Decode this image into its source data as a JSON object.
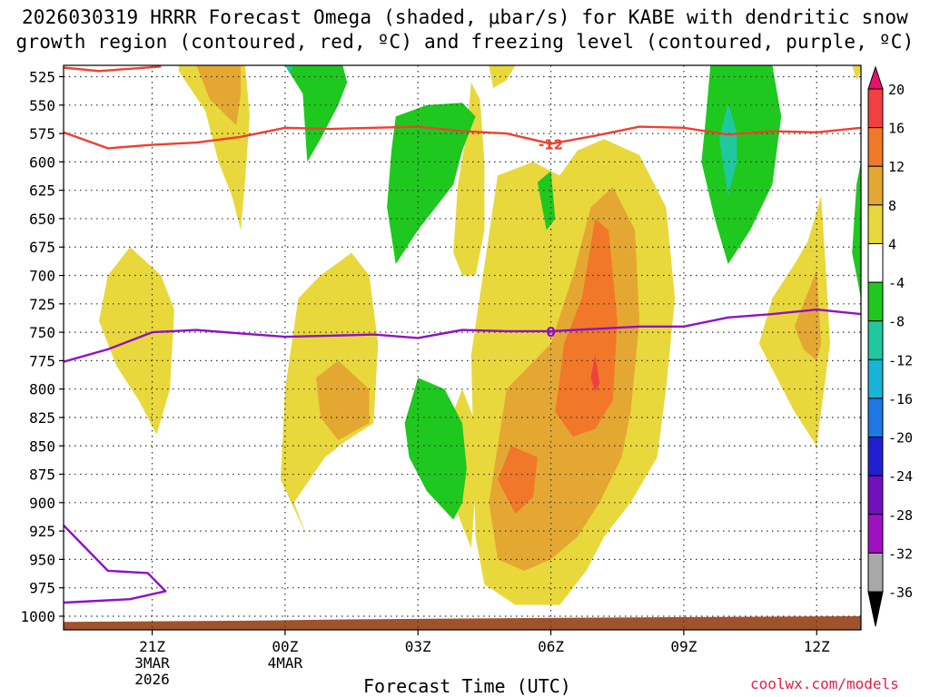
{
  "chart_data": {
    "type": "heatmap",
    "title_line1": "2026030319 HRRR Forecast Omega (shaded, μbar/s) for KABE with dendritic snow",
    "title_line2": "growth region (contoured, red, ºC) and freezing level (contoured, purple, ºC)",
    "xlabel": "Forecast Time (UTC)",
    "credit": "coolwx.com/models",
    "x_ticks": [
      {
        "hour": 21,
        "label": "21Z",
        "sub1": "3MAR",
        "sub2": "2026"
      },
      {
        "hour": 24,
        "label": "00Z",
        "sub1": "4MAR",
        "sub2": ""
      },
      {
        "hour": 27,
        "label": "03Z",
        "sub1": "",
        "sub2": ""
      },
      {
        "hour": 30,
        "label": "06Z",
        "sub1": "",
        "sub2": ""
      },
      {
        "hour": 33,
        "label": "09Z",
        "sub1": "",
        "sub2": ""
      },
      {
        "hour": 36,
        "label": "12Z",
        "sub1": "",
        "sub2": ""
      }
    ],
    "x_range_hours": [
      19.0,
      37.0
    ],
    "y_ticks": [
      "525",
      "550",
      "575",
      "600",
      "625",
      "650",
      "675",
      "700",
      "725",
      "750",
      "775",
      "800",
      "825",
      "850",
      "875",
      "900",
      "925",
      "950",
      "975",
      "1000"
    ],
    "y_range_mb": [
      515,
      1012
    ],
    "colorbar": {
      "labels": [
        "20",
        "16",
        "12",
        "8",
        "4",
        "-4",
        "-8",
        "-12",
        "-16",
        "-20",
        "-24",
        "-28",
        "-32",
        "-36"
      ],
      "colors": [
        "#e8106e",
        "#f04040",
        "#f07828",
        "#e4a832",
        "#e8d83c",
        "#ffffff",
        "#1ec81e",
        "#20c8a0",
        "#18b4d8",
        "#1e78e6",
        "#2020d0",
        "#7010c0",
        "#a010c0",
        "#a8a8a8",
        "#000000"
      ]
    },
    "contours": [
      {
        "name": "dgz-top",
        "value": "-12",
        "color": "#f04030",
        "points": [
          [
            19,
            574
          ],
          [
            20,
            588
          ],
          [
            21,
            585
          ],
          [
            22,
            583
          ],
          [
            23,
            578
          ],
          [
            24,
            570
          ],
          [
            25,
            571
          ],
          [
            26,
            570
          ],
          [
            27,
            569
          ],
          [
            28,
            573
          ],
          [
            29,
            575
          ],
          [
            30,
            584
          ],
          [
            31,
            577
          ],
          [
            32,
            569
          ],
          [
            33,
            570
          ],
          [
            34,
            576
          ],
          [
            35,
            573
          ],
          [
            36,
            574
          ],
          [
            37,
            570
          ]
        ]
      },
      {
        "name": "freezing-level",
        "value": "0",
        "color": "#9010c8",
        "points": [
          [
            19,
            776
          ],
          [
            20,
            765
          ],
          [
            21,
            750
          ],
          [
            22,
            748
          ],
          [
            23,
            751
          ],
          [
            24,
            754
          ],
          [
            25,
            753
          ],
          [
            26,
            752
          ],
          [
            27,
            755
          ],
          [
            28,
            748
          ],
          [
            29,
            749
          ],
          [
            30,
            749
          ],
          [
            31,
            747
          ],
          [
            32,
            745
          ],
          [
            33,
            745
          ],
          [
            34,
            737
          ],
          [
            35,
            734
          ],
          [
            36,
            730
          ],
          [
            37,
            734
          ]
        ]
      },
      {
        "name": "surface-freezing",
        "value": "",
        "color": "#9010c8",
        "points": [
          [
            19,
            920
          ],
          [
            20,
            960
          ],
          [
            20.9,
            962
          ],
          [
            21.3,
            978
          ],
          [
            20.5,
            985
          ],
          [
            19,
            988
          ]
        ]
      },
      {
        "name": "top-edge-contour",
        "value": "",
        "color": "#f04030",
        "points": [
          [
            19,
            517
          ],
          [
            19.8,
            520
          ],
          [
            21.2,
            516
          ]
        ]
      }
    ],
    "shaded_regions": [
      {
        "name": "rising-band-main",
        "value": 4,
        "poly": [
          [
            28.2,
            770
          ],
          [
            28.8,
            612
          ],
          [
            29.6,
            600
          ],
          [
            30.2,
            612
          ],
          [
            30.6,
            590
          ],
          [
            31.2,
            580
          ],
          [
            32.0,
            594
          ],
          [
            32.6,
            640
          ],
          [
            32.8,
            720
          ],
          [
            32.6,
            800
          ],
          [
            32.4,
            860
          ],
          [
            31.8,
            900
          ],
          [
            31.2,
            930
          ],
          [
            30.8,
            960
          ],
          [
            30.2,
            990
          ],
          [
            29.2,
            990
          ],
          [
            28.5,
            972
          ],
          [
            28.3,
            930
          ]
        ]
      },
      {
        "name": "rising-band-lower-left",
        "value": 4,
        "poly": [
          [
            27.7,
            830
          ],
          [
            28.0,
            800
          ],
          [
            28.4,
            840
          ],
          [
            28.2,
            940
          ],
          [
            27.8,
            900
          ]
        ]
      },
      {
        "name": "rising-band-orange",
        "value": 8,
        "poly": [
          [
            28.6,
            900
          ],
          [
            29.0,
            800
          ],
          [
            30.0,
            760
          ],
          [
            30.5,
            700
          ],
          [
            30.9,
            640
          ],
          [
            31.4,
            622
          ],
          [
            31.9,
            660
          ],
          [
            32.0,
            740
          ],
          [
            31.8,
            820
          ],
          [
            31.6,
            860
          ],
          [
            31.1,
            900
          ],
          [
            30.6,
            930
          ],
          [
            30.0,
            950
          ],
          [
            29.4,
            960
          ],
          [
            28.8,
            950
          ]
        ]
      },
      {
        "name": "rising-band-darker",
        "value": 12,
        "poly": [
          [
            28.8,
            880
          ],
          [
            29.1,
            850
          ],
          [
            29.7,
            860
          ],
          [
            29.6,
            895
          ],
          [
            29.2,
            910
          ]
        ]
      },
      {
        "name": "rising-band-core",
        "value": 12,
        "poly": [
          [
            30.1,
            820
          ],
          [
            30.3,
            760
          ],
          [
            30.7,
            720
          ],
          [
            31.0,
            650
          ],
          [
            31.3,
            660
          ],
          [
            31.5,
            740
          ],
          [
            31.4,
            810
          ],
          [
            31.0,
            835
          ],
          [
            30.5,
            842
          ]
        ]
      },
      {
        "name": "rising-band-peak",
        "value": 16,
        "poly": [
          [
            30.9,
            790
          ],
          [
            31.0,
            770
          ],
          [
            31.1,
            795
          ],
          [
            31.0,
            802
          ]
        ]
      },
      {
        "name": "upper-left-yellow",
        "value": 4,
        "poly": [
          [
            21.6,
            520
          ],
          [
            22.2,
            555
          ],
          [
            22.5,
            600
          ],
          [
            22.8,
            630
          ],
          [
            23.0,
            660
          ],
          [
            23.1,
            615
          ],
          [
            23.2,
            560
          ],
          [
            23.1,
            515
          ],
          [
            21.6,
            515
          ]
        ]
      },
      {
        "name": "upper-left-orange",
        "value": 8,
        "poly": [
          [
            22.0,
            515
          ],
          [
            22.3,
            545
          ],
          [
            22.9,
            568
          ],
          [
            23.0,
            540
          ],
          [
            23.0,
            515
          ]
        ]
      },
      {
        "name": "left-mid-yellow",
        "value": 4,
        "poly": [
          [
            19.8,
            740
          ],
          [
            20.0,
            700
          ],
          [
            20.5,
            675
          ],
          [
            21.2,
            700
          ],
          [
            21.5,
            730
          ],
          [
            21.4,
            800
          ],
          [
            21.1,
            840
          ],
          [
            20.7,
            810
          ],
          [
            20.2,
            780
          ]
        ]
      },
      {
        "name": "center-left-yellow",
        "value": 4,
        "poly": [
          [
            23.9,
            880
          ],
          [
            24.0,
            800
          ],
          [
            24.3,
            720
          ],
          [
            24.8,
            700
          ],
          [
            25.5,
            680
          ],
          [
            25.9,
            700
          ],
          [
            26.1,
            760
          ],
          [
            26.0,
            830
          ],
          [
            25.4,
            845
          ],
          [
            24.9,
            860
          ],
          [
            24.2,
            900
          ],
          [
            24.5,
            930
          ]
        ]
      },
      {
        "name": "center-left-orange",
        "value": 8,
        "poly": [
          [
            24.7,
            790
          ],
          [
            25.2,
            775
          ],
          [
            25.9,
            800
          ],
          [
            25.9,
            830
          ],
          [
            25.2,
            845
          ],
          [
            24.8,
            825
          ]
        ]
      },
      {
        "name": "tall-yellow-column",
        "value": 4,
        "poly": [
          [
            27.8,
            680
          ],
          [
            27.9,
            620
          ],
          [
            28.1,
            575
          ],
          [
            28.2,
            530
          ],
          [
            28.4,
            545
          ],
          [
            28.5,
            600
          ],
          [
            28.5,
            660
          ],
          [
            28.3,
            700
          ],
          [
            28.0,
            700
          ]
        ]
      },
      {
        "name": "top-right-yellow-small",
        "value": 4,
        "poly": [
          [
            28.6,
            515
          ],
          [
            28.7,
            535
          ],
          [
            29.0,
            528
          ],
          [
            29.2,
            515
          ]
        ]
      },
      {
        "name": "right-yellow",
        "value": 4,
        "poly": [
          [
            34.7,
            760
          ],
          [
            35.0,
            720
          ],
          [
            35.5,
            690
          ],
          [
            35.8,
            670
          ],
          [
            36.1,
            630
          ],
          [
            36.2,
            690
          ],
          [
            36.3,
            760
          ],
          [
            36.1,
            820
          ],
          [
            36.0,
            850
          ],
          [
            35.5,
            820
          ],
          [
            35.1,
            790
          ]
        ]
      },
      {
        "name": "right-orange",
        "value": 8,
        "poly": [
          [
            35.5,
            745
          ],
          [
            35.8,
            715
          ],
          [
            36.0,
            695
          ],
          [
            36.1,
            760
          ],
          [
            36.0,
            775
          ],
          [
            35.7,
            765
          ]
        ]
      },
      {
        "name": "top-right-edge-yellow",
        "value": 4,
        "poly": [
          [
            36.8,
            515
          ],
          [
            36.9,
            528
          ],
          [
            37.0,
            520
          ],
          [
            37.0,
            515
          ]
        ]
      },
      {
        "name": "green-top-center",
        "value": -4,
        "poly": [
          [
            24.0,
            515
          ],
          [
            24.4,
            540
          ],
          [
            24.5,
            600
          ],
          [
            24.8,
            580
          ],
          [
            25.2,
            550
          ],
          [
            25.4,
            530
          ],
          [
            25.3,
            515
          ]
        ]
      },
      {
        "name": "teal-top-center",
        "value": -8,
        "poly": [
          [
            24.0,
            515
          ],
          [
            24.1,
            522
          ],
          [
            24.2,
            515
          ]
        ]
      },
      {
        "name": "green-mid-center",
        "value": -4,
        "poly": [
          [
            26.5,
            560
          ],
          [
            27.2,
            550
          ],
          [
            28.0,
            548
          ],
          [
            28.3,
            560
          ],
          [
            28.0,
            590
          ],
          [
            27.8,
            620
          ],
          [
            27.0,
            660
          ],
          [
            26.5,
            690
          ],
          [
            26.3,
            640
          ],
          [
            26.4,
            590
          ]
        ]
      },
      {
        "name": "green-lower-center",
        "value": -4,
        "poly": [
          [
            26.7,
            830
          ],
          [
            27.0,
            790
          ],
          [
            27.6,
            800
          ],
          [
            28.0,
            830
          ],
          [
            28.1,
            870
          ],
          [
            28.0,
            900
          ],
          [
            27.8,
            915
          ],
          [
            27.2,
            890
          ],
          [
            26.8,
            860
          ]
        ]
      },
      {
        "name": "green-small",
        "value": -4,
        "poly": [
          [
            29.7,
            618
          ],
          [
            30.0,
            608
          ],
          [
            30.1,
            650
          ],
          [
            29.9,
            660
          ]
        ]
      },
      {
        "name": "green-upper-right",
        "value": -4,
        "poly": [
          [
            33.4,
            600
          ],
          [
            33.5,
            560
          ],
          [
            33.6,
            515
          ],
          [
            35.0,
            515
          ],
          [
            35.2,
            560
          ],
          [
            35.0,
            620
          ],
          [
            34.5,
            660
          ],
          [
            34.0,
            690
          ],
          [
            33.7,
            650
          ]
        ]
      },
      {
        "name": "teal-upper-right",
        "value": -8,
        "poly": [
          [
            33.8,
            580
          ],
          [
            34.0,
            548
          ],
          [
            34.2,
            575
          ],
          [
            34.2,
            600
          ],
          [
            34.0,
            630
          ]
        ]
      },
      {
        "name": "green-right-edge",
        "value": -4,
        "poly": [
          [
            36.8,
            680
          ],
          [
            36.9,
            620
          ],
          [
            37.0,
            600
          ],
          [
            37.0,
            720
          ]
        ]
      }
    ],
    "ground_profile": [
      [
        19,
        1005
      ],
      [
        23,
        1004
      ],
      [
        25,
        1003
      ],
      [
        28,
        1002
      ],
      [
        32,
        1001
      ],
      [
        37,
        1000
      ]
    ]
  }
}
